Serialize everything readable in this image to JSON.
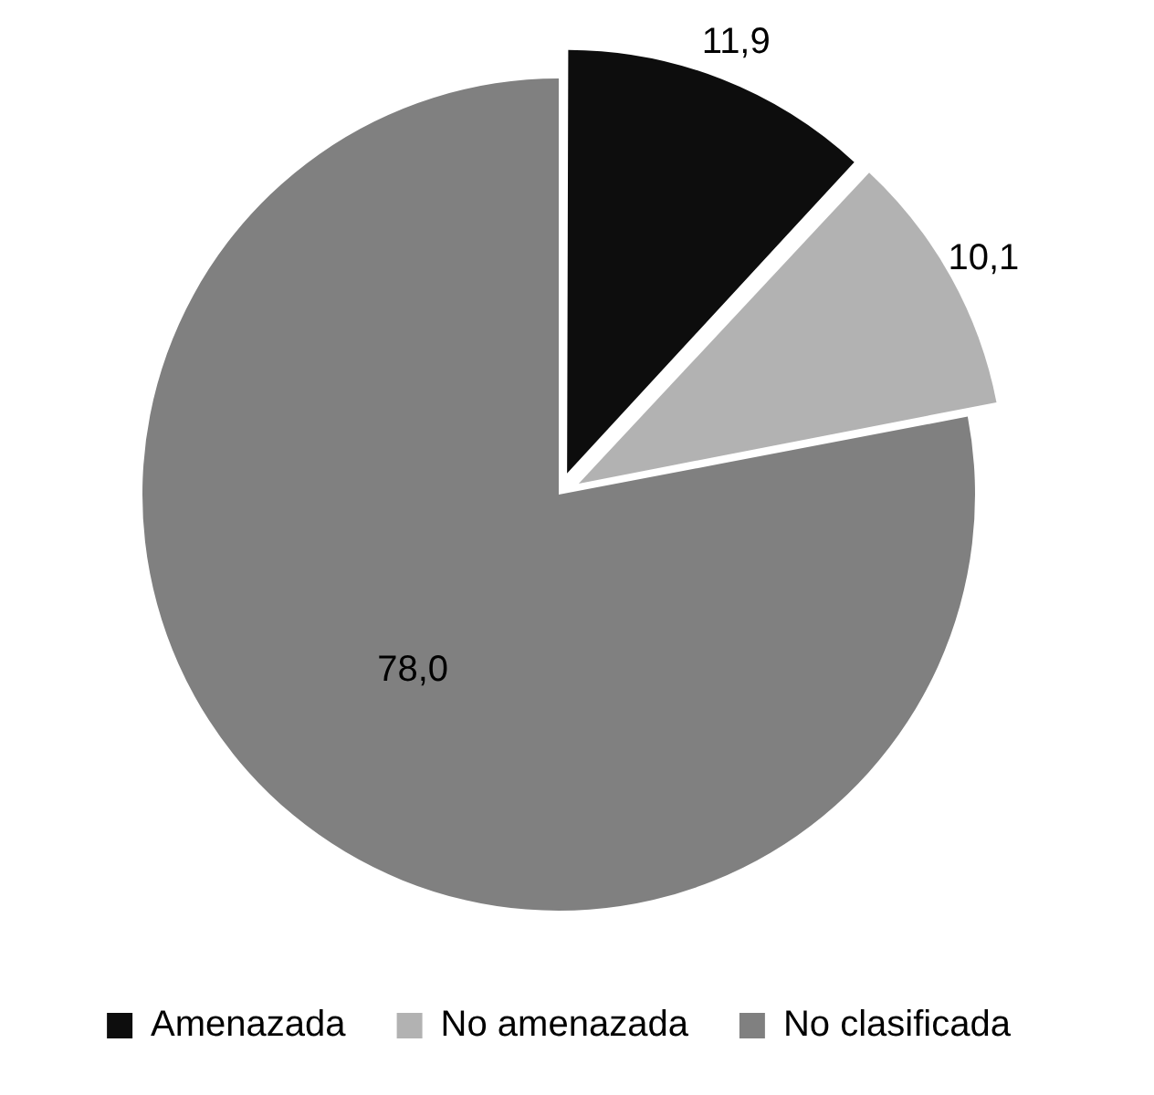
{
  "chart_data": {
    "type": "pie",
    "categories": [
      "Amenazada",
      "No amenazada",
      "No clasificada"
    ],
    "values": [
      11.9,
      10.1,
      78.0
    ],
    "colors": [
      "#0d0d0d",
      "#b2b2b2",
      "#808080"
    ],
    "value_labels": [
      "11,9",
      "10,1",
      "78,0"
    ],
    "legend": "bottom"
  }
}
